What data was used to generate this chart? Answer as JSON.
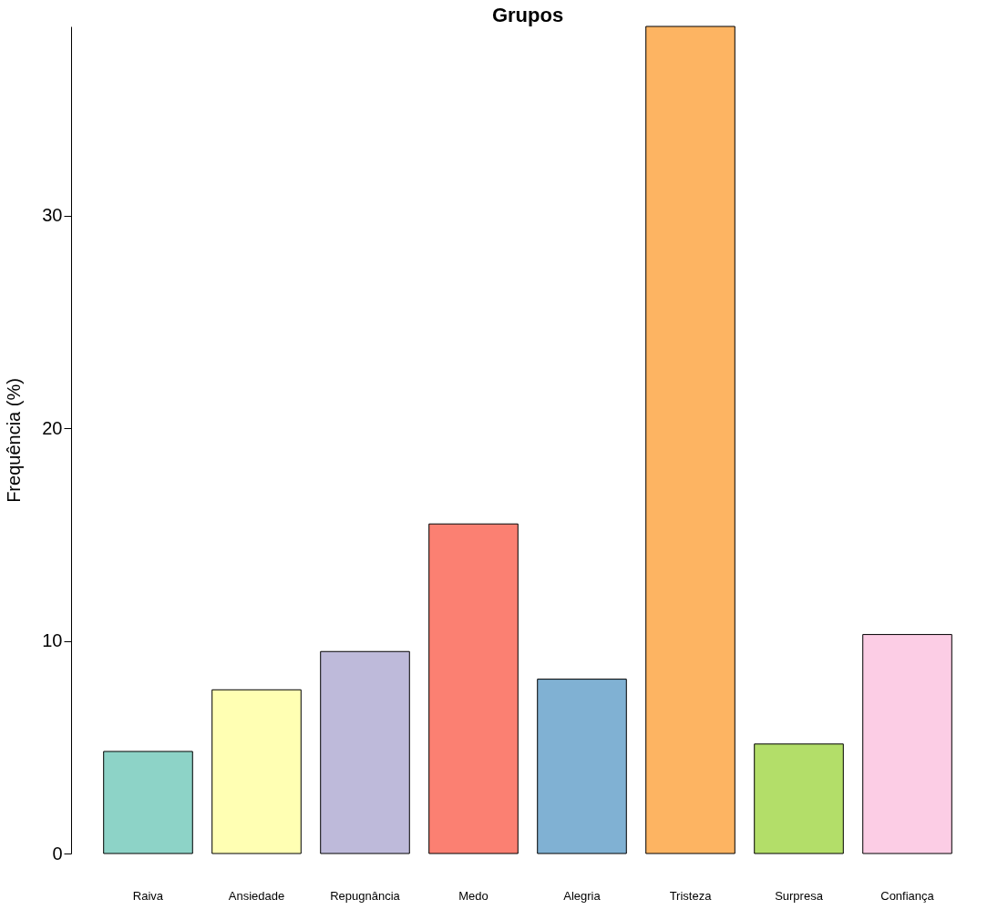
{
  "chart_data": {
    "type": "bar",
    "title": "Grupos",
    "ylabel": "Frequência (%)",
    "categories": [
      "Raiva",
      "Ansiedade",
      "Repugnância",
      "Medo",
      "Alegria",
      "Tristeza",
      "Surpresa",
      "Confiança"
    ],
    "values": [
      4.8,
      7.7,
      9.5,
      15.5,
      8.2,
      38.9,
      5.15,
      10.3
    ],
    "colors": [
      "#8dd3c7",
      "#ffffb3",
      "#bebada",
      "#fb8072",
      "#80b1d3",
      "#fdb462",
      "#b3de69",
      "#fccde5"
    ],
    "ylim": [
      0,
      38.9
    ],
    "yticks": [
      0,
      10,
      20,
      30
    ],
    "grid": false
  }
}
